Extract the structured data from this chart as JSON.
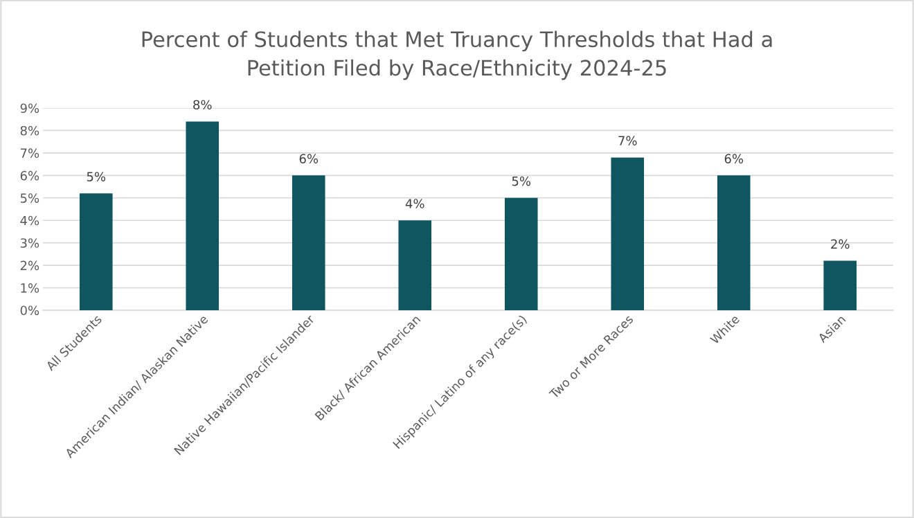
{
  "chart_data": {
    "type": "bar",
    "title": "Percent of Students that Met Truancy Thresholds that Had a\nPetition Filed by Race/Ethnicity 2024-25",
    "categories": [
      "All Students",
      "American Indian/ Alaskan Native",
      "Native Hawaiian/Pacific Islander",
      "Black/ African American",
      "Hispanic/ Latino of any race(s)",
      "Two or More Races",
      "White",
      "Asian"
    ],
    "values": [
      5.2,
      8.4,
      6.0,
      4.0,
      5.0,
      6.8,
      6.0,
      2.2
    ],
    "value_labels": [
      "5%",
      "8%",
      "6%",
      "4%",
      "5%",
      "7%",
      "6%",
      "2%"
    ],
    "color": "#0f5660",
    "ylim": [
      0,
      9
    ],
    "yticks": [
      {
        "value": 0,
        "label": "0%"
      },
      {
        "value": 1,
        "label": "1%"
      },
      {
        "value": 2,
        "label": "2%"
      },
      {
        "value": 3,
        "label": "3%"
      },
      {
        "value": 4,
        "label": "4%"
      },
      {
        "value": 5,
        "label": "5%"
      },
      {
        "value": 6,
        "label": "6%"
      },
      {
        "value": 7,
        "label": "7%"
      },
      {
        "value": 8,
        "label": "8%"
      },
      {
        "value": 9,
        "label": "9%"
      }
    ],
    "grid": "y"
  }
}
